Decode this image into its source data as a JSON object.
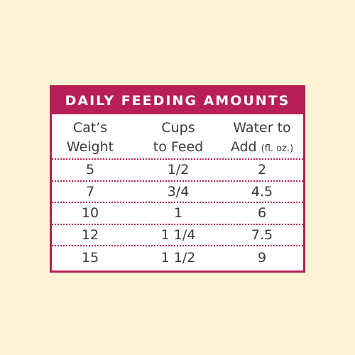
{
  "table": {
    "title": "DAILY FEEDING AMOUNTS",
    "headers": {
      "weight": {
        "line1": "Cat’s",
        "line2": "Weight"
      },
      "cups": {
        "line1": "Cups",
        "line2": "to Feed"
      },
      "water": {
        "line1": "Water to",
        "line2": "Add",
        "unit": "(fl. oz.)"
      }
    },
    "rows": [
      {
        "weight": "5",
        "cups": "1/2",
        "water": "2"
      },
      {
        "weight": "7",
        "cups": "3/4",
        "water": "4.5"
      },
      {
        "weight": "10",
        "cups": "1",
        "water": "6"
      },
      {
        "weight": "12",
        "cups": "1 1/4",
        "water": "7.5"
      },
      {
        "weight": "15",
        "cups": "1 1/2",
        "water": "9"
      }
    ]
  },
  "colors": {
    "background": "#fdf3d4",
    "accent": "#b81f56",
    "text": "#3a3a3a"
  }
}
